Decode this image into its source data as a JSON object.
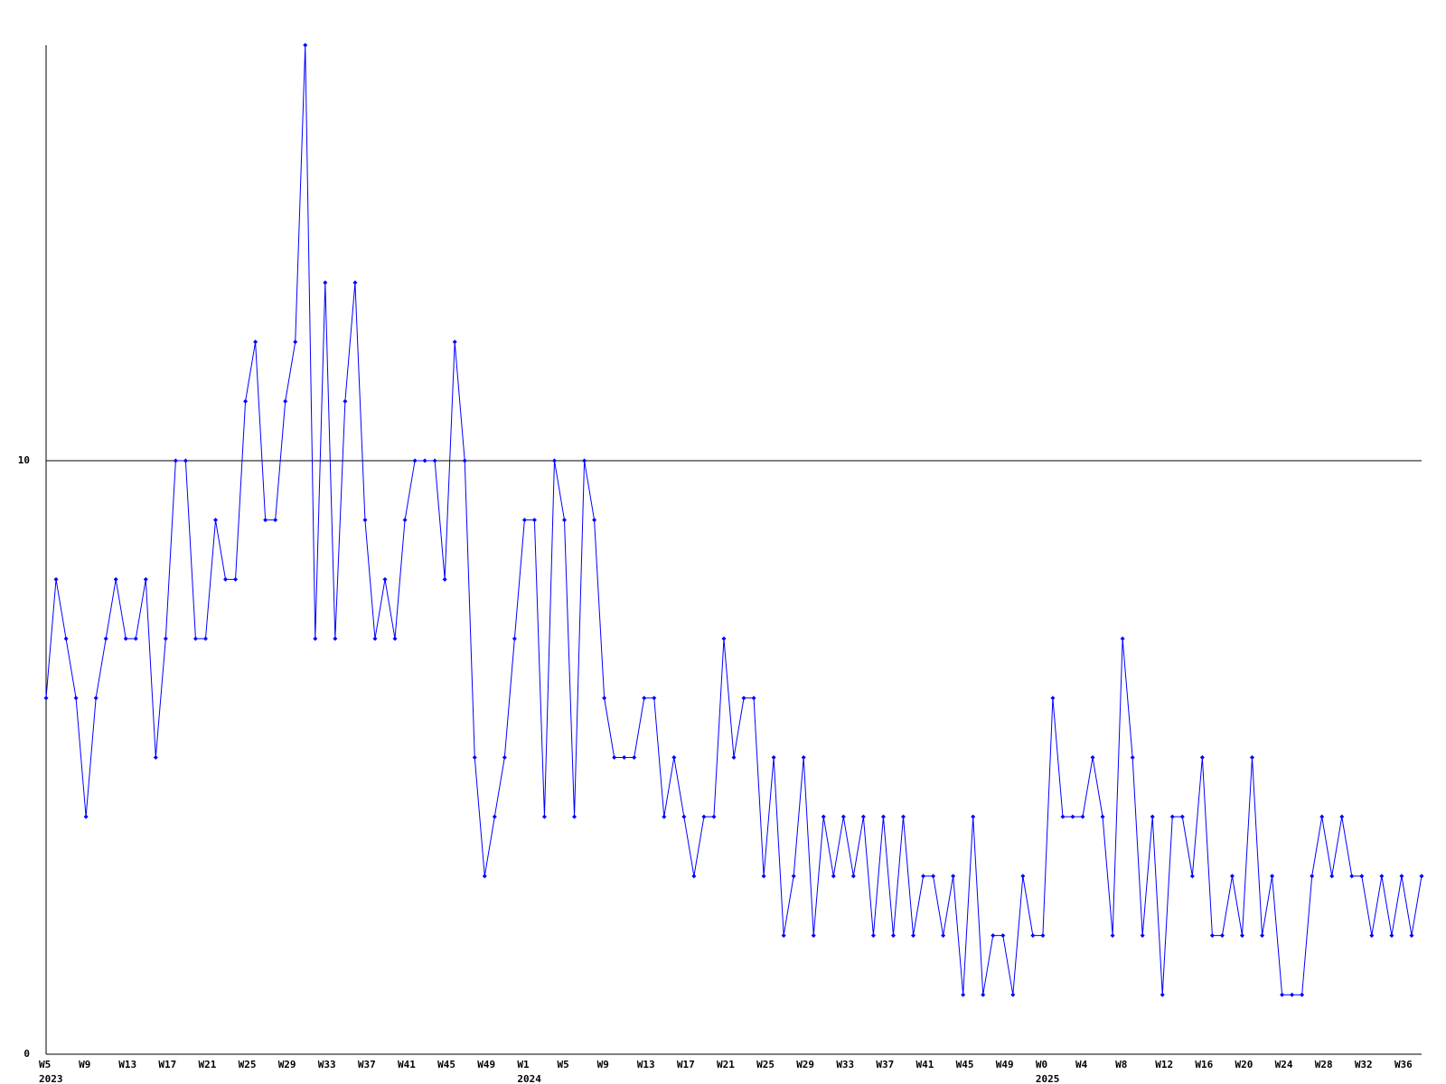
{
  "chart_data": {
    "type": "line",
    "categories": [
      "W5",
      null,
      null,
      null,
      "W9",
      null,
      null,
      null,
      "W13",
      null,
      null,
      null,
      "W17",
      null,
      null,
      null,
      "W21",
      null,
      null,
      null,
      "W25",
      null,
      null,
      null,
      "W29",
      null,
      null,
      null,
      "W33",
      null,
      null,
      null,
      "W37",
      null,
      null,
      null,
      "W41",
      null,
      null,
      null,
      "W45",
      null,
      null,
      null,
      "W49",
      null,
      null,
      null,
      "W1",
      null,
      null,
      null,
      "W5",
      null,
      null,
      null,
      "W9",
      null,
      null,
      null,
      "W13",
      null,
      null,
      null,
      "W17",
      null,
      null,
      null,
      "W21",
      null,
      null,
      null,
      "W25",
      null,
      null,
      null,
      "W29",
      null,
      null,
      null,
      "W33",
      null,
      null,
      null,
      "W37",
      null,
      null,
      null,
      "W41",
      null,
      null,
      null,
      "W45",
      null,
      null,
      null,
      "W49",
      null,
      null,
      null,
      "W0",
      null,
      null,
      null,
      "W4",
      null,
      null,
      null,
      "W8",
      null,
      null,
      null,
      "W12",
      null,
      null,
      null,
      "W16",
      null,
      null,
      null,
      "W20",
      null,
      null,
      null,
      "W24",
      null,
      null,
      null,
      "W28",
      null,
      null,
      null,
      "W32",
      null,
      null,
      null,
      "W36",
      null,
      null
    ],
    "years": [
      "2023",
      null,
      null,
      null,
      null,
      null,
      null,
      null,
      null,
      null,
      null,
      null,
      null,
      null,
      null,
      null,
      null,
      null,
      null,
      null,
      null,
      null,
      null,
      null,
      null,
      null,
      null,
      null,
      null,
      null,
      null,
      null,
      null,
      null,
      null,
      null,
      null,
      null,
      null,
      null,
      null,
      null,
      null,
      null,
      null,
      null,
      null,
      null,
      "2024",
      null,
      null,
      null,
      null,
      null,
      null,
      null,
      null,
      null,
      null,
      null,
      null,
      null,
      null,
      null,
      null,
      null,
      null,
      null,
      null,
      null,
      null,
      null,
      null,
      null,
      null,
      null,
      null,
      null,
      null,
      null,
      null,
      null,
      null,
      null,
      null,
      null,
      null,
      null,
      null,
      null,
      null,
      null,
      null,
      null,
      null,
      null,
      null,
      null,
      null,
      null,
      "2025",
      null,
      null,
      null,
      null,
      null,
      null,
      null,
      null,
      null,
      null,
      null,
      null,
      null,
      null,
      null,
      null,
      null,
      null,
      null,
      null,
      null,
      null,
      null,
      null,
      null,
      null,
      null,
      null,
      null,
      null,
      null,
      null,
      null,
      null,
      null,
      null,
      null,
      null
    ],
    "series": [
      {
        "color": "#0000ff",
        "values": [
          6,
          8,
          7,
          6,
          4,
          6,
          7,
          8,
          7,
          7,
          8,
          5,
          7,
          10,
          10,
          7,
          7,
          9,
          8,
          8,
          11,
          12,
          9,
          9,
          11,
          12,
          17,
          7,
          13,
          7,
          11,
          13,
          9,
          7,
          8,
          7,
          9,
          10,
          10,
          10,
          8,
          12,
          10,
          5,
          3,
          4,
          5,
          7,
          9,
          9,
          4,
          10,
          9,
          4,
          10,
          9,
          6,
          5,
          5,
          5,
          6,
          6,
          4,
          5,
          4,
          3,
          4,
          4,
          7,
          5,
          6,
          6,
          3,
          5,
          2,
          3,
          5,
          2,
          4,
          3,
          4,
          3,
          4,
          2,
          4,
          2,
          4,
          2,
          3,
          3,
          2,
          3,
          1,
          4,
          1,
          2,
          2,
          1,
          3,
          2,
          2,
          6,
          4,
          4,
          4,
          5,
          4,
          2,
          7,
          5,
          2,
          4,
          1,
          4,
          4,
          3,
          5,
          2,
          2,
          3,
          2,
          5,
          2,
          3,
          1,
          1,
          1,
          3,
          4,
          3,
          4,
          3,
          3,
          2,
          3,
          2,
          3,
          2,
          3
        ]
      }
    ],
    "ylim": [
      0,
      17
    ],
    "yticks": [
      0,
      10
    ],
    "grid": true
  }
}
